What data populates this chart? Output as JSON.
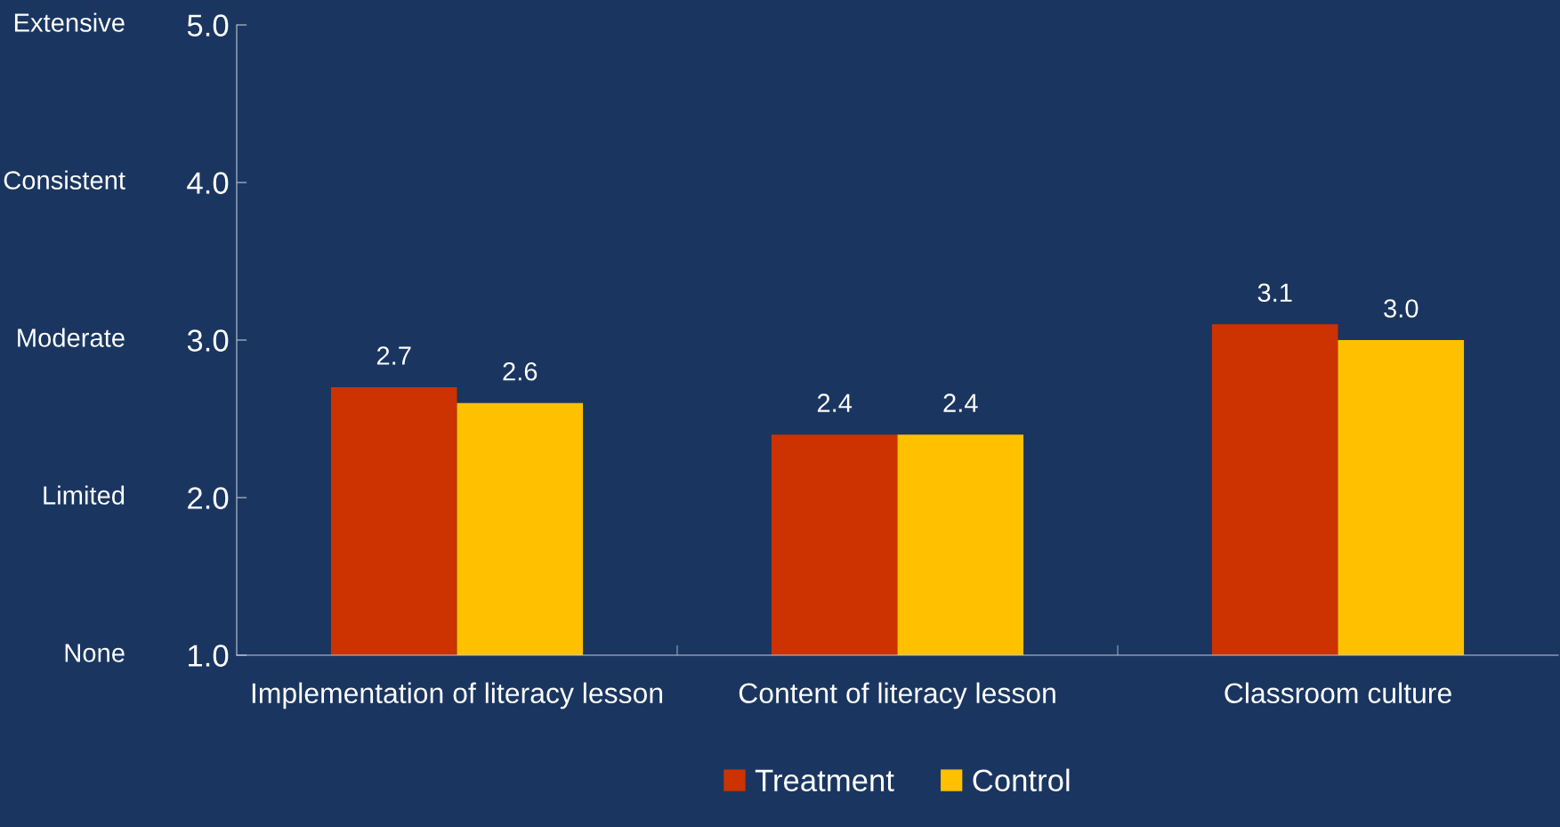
{
  "chart_data": {
    "type": "bar",
    "categories": [
      "Implementation of literacy lesson",
      "Content of literacy lesson",
      "Classroom culture"
    ],
    "series": [
      {
        "name": "Treatment",
        "color": "#cc3300",
        "values": [
          2.7,
          2.4,
          3.1
        ],
        "value_labels": [
          "2.7",
          "2.4",
          "3.1"
        ]
      },
      {
        "name": "Control",
        "color": "#ffc000",
        "values": [
          2.6,
          2.4,
          3.0
        ],
        "value_labels": [
          "2.6",
          "2.4",
          "3.0"
        ]
      }
    ],
    "ylim": [
      1,
      5
    ],
    "yticks": [
      {
        "value": 1,
        "label": "1.0"
      },
      {
        "value": 2,
        "label": "2.0"
      },
      {
        "value": 3,
        "label": "3.0"
      },
      {
        "value": 4,
        "label": "4.0"
      },
      {
        "value": 5,
        "label": "5.0"
      }
    ],
    "annotations": [
      "None",
      "Limited",
      "Moderate",
      "Consistent",
      "Extensive"
    ],
    "legend": "bottom"
  }
}
